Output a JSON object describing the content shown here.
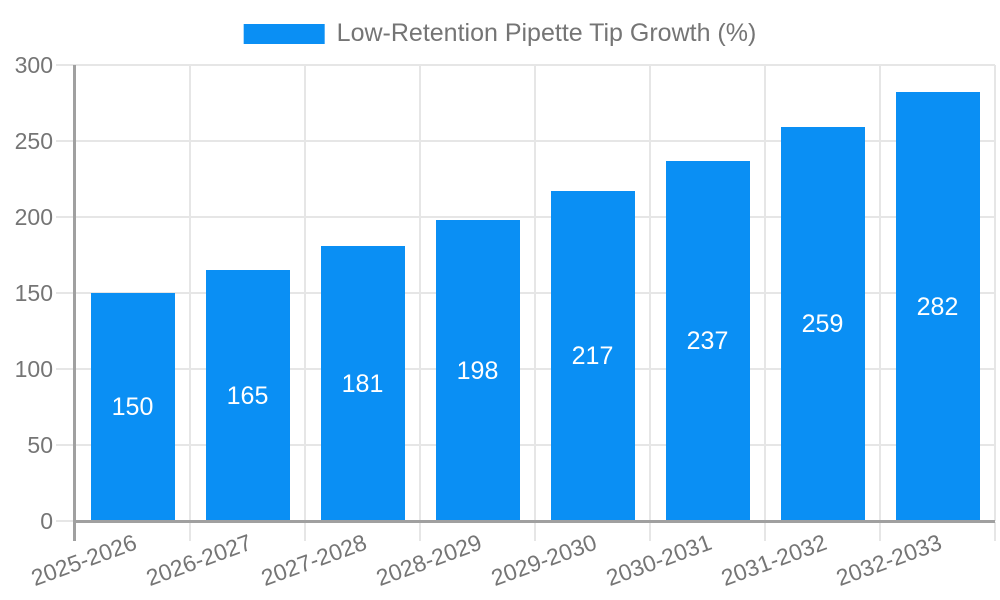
{
  "chart_data": {
    "type": "bar",
    "legend": {
      "label": "Low-Retention Pipette Tip Growth (%)",
      "position": "top"
    },
    "categories": [
      "2025-2026",
      "2026-2027",
      "2027-2028",
      "2028-2029",
      "2029-2030",
      "2030-2031",
      "2031-2032",
      "2032-2033"
    ],
    "series": [
      {
        "name": "Low-Retention Pipette Tip Growth (%)",
        "values": [
          150,
          165,
          181,
          198,
          217,
          237,
          259,
          282
        ]
      }
    ],
    "value_labels_shown": true,
    "ylim": [
      0,
      300
    ],
    "yticks": [
      0,
      50,
      100,
      150,
      200,
      250,
      300
    ],
    "grid": true,
    "x_label_rotation_deg": -20,
    "colors": {
      "bar": "#0a8ff4",
      "grid": "#e6e6e6",
      "axis_line": "#a0a0a0",
      "axis_text": "#757575",
      "value_text": "#ffffff"
    }
  }
}
